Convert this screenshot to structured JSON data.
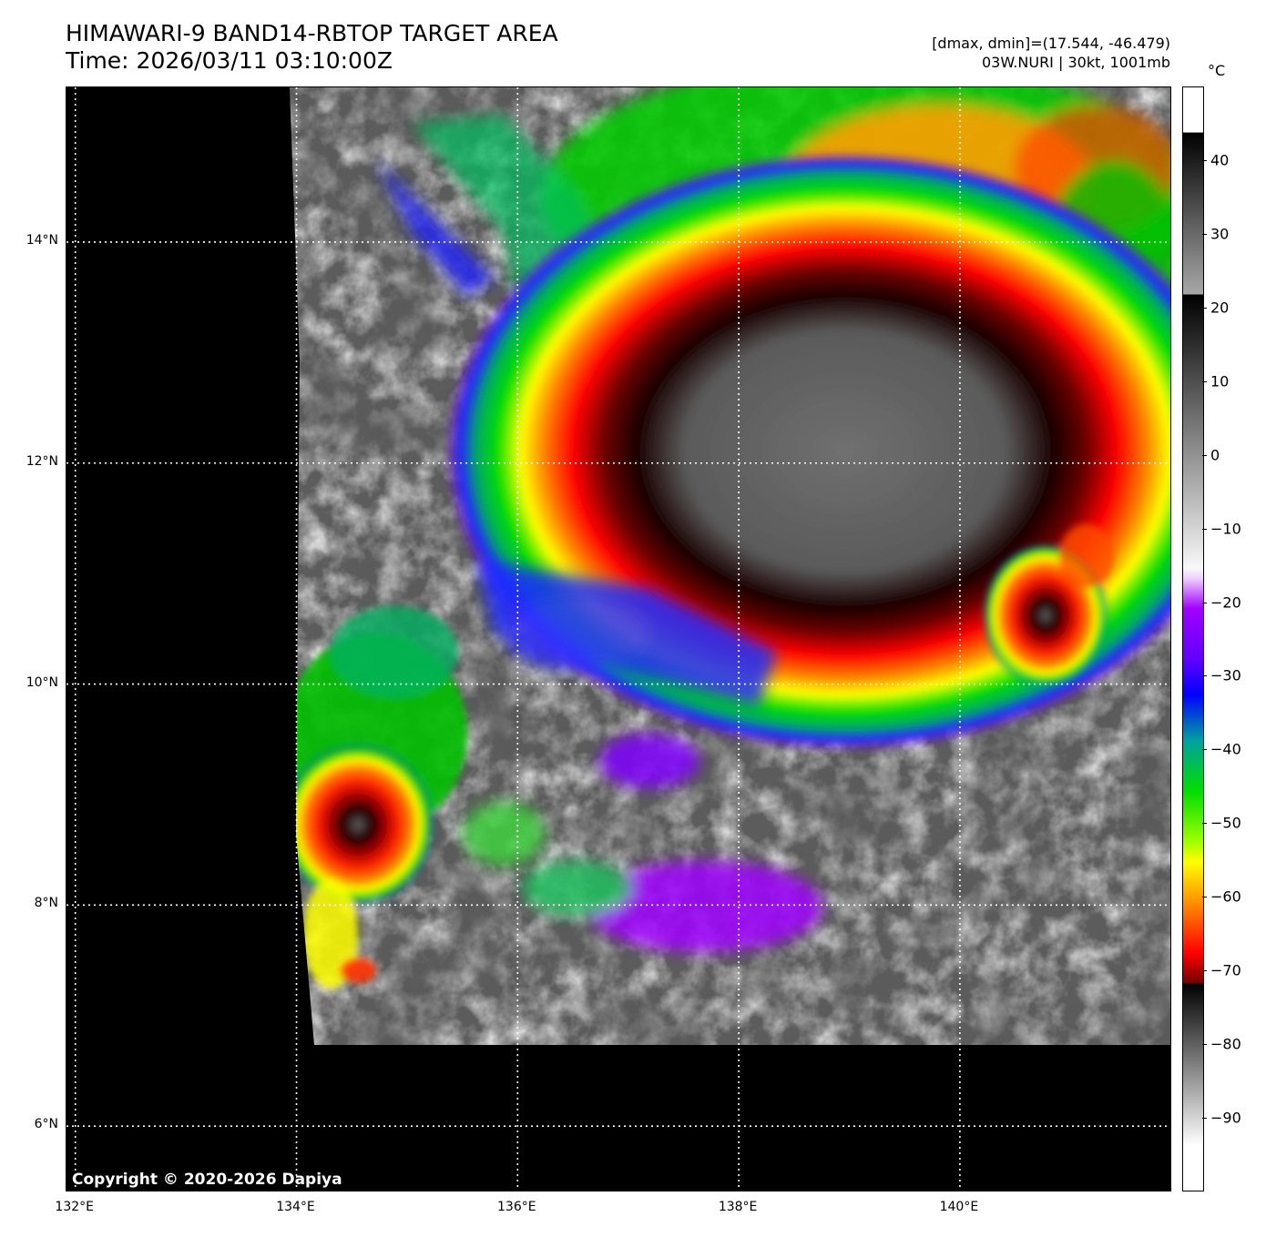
{
  "header": {
    "title": "HIMAWARI-9 BAND14-RBTOP TARGET AREA",
    "time": "Time: 2026/03/11 03:10:00Z",
    "range_info": "[dmax, dmin]=(17.544, -46.479)",
    "storm_info": "03W.NURI | 30kt, 1001mb"
  },
  "map": {
    "copyright": "Copyright © 2020-2026 Dapiya",
    "lon_range": [
      131.92,
      141.92
    ],
    "lat_range": [
      5.4,
      15.4
    ],
    "lat_labels": [
      "14°N",
      "12°N",
      "10°N",
      "8°N",
      "6°N"
    ],
    "lon_labels": [
      "132°E",
      "134°E",
      "136°E",
      "138°E",
      "140°E"
    ],
    "gridline_style": "dotted white",
    "background_color": "#000000"
  },
  "colorbar": {
    "unit": "°C",
    "range": [
      -100,
      50
    ],
    "ticks": [
      "40",
      "30",
      "20",
      "10",
      "0",
      "−10",
      "−20",
      "−30",
      "−40",
      "−50",
      "−60",
      "−70",
      "−80",
      "−90"
    ],
    "tick_values": [
      40,
      30,
      20,
      10,
      0,
      -10,
      -20,
      -30,
      -40,
      -50,
      -60,
      -70,
      -80,
      -90
    ],
    "colors": {
      "violet": "#9900ff",
      "blue": "#0000ff",
      "green": "#00cc00",
      "yellow": "#ffff00",
      "orange": "#ff8000",
      "red": "#ff0000",
      "dark_red": "#400000"
    }
  }
}
